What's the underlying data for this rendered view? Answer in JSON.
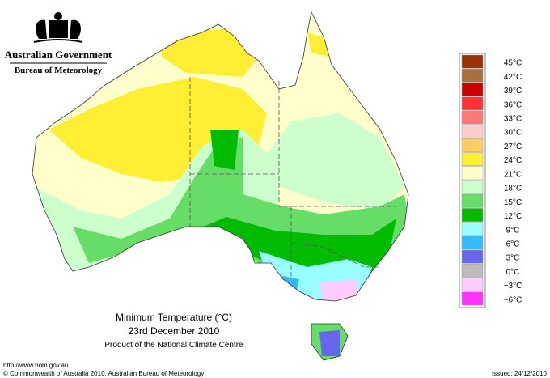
{
  "header": {
    "government": "Australian Government",
    "bureau": "Bureau of Meteorology"
  },
  "legend": [
    {
      "label": "45°C",
      "color": "#993300"
    },
    {
      "label": "42°C",
      "color": "#a8703c"
    },
    {
      "label": "39°C",
      "color": "#cc0000"
    },
    {
      "label": "36°C",
      "color": "#ff3333"
    },
    {
      "label": "33°C",
      "color": "#ff7777"
    },
    {
      "label": "30°C",
      "color": "#ffcccc"
    },
    {
      "label": "27°C",
      "color": "#ffcc66"
    },
    {
      "label": "24°C",
      "color": "#ffee33"
    },
    {
      "label": "21°C",
      "color": "#ffffcc"
    },
    {
      "label": "18°C",
      "color": "#ccffcc"
    },
    {
      "label": "15°C",
      "color": "#66dd66"
    },
    {
      "label": "12°C",
      "color": "#00bb00"
    },
    {
      "label": "9°C",
      "color": "#99ffff"
    },
    {
      "label": "6°C",
      "color": "#33bbff"
    },
    {
      "label": "3°C",
      "color": "#6666ee"
    },
    {
      "label": "0°C",
      "color": "#bbbbbb"
    },
    {
      "label": "−3°C",
      "color": "#ffccff"
    },
    {
      "label": "−6°C",
      "color": "#ff33ff"
    }
  ],
  "title": "Minimum Temperature (°C)",
  "date": "23rd December 2010",
  "product": "Product of the National Climate Centre",
  "footer": {
    "url": "http://www.bom.gov.au",
    "copyright": "© Commonwealth of Australia 2010, Australian Bureau of Meteorology",
    "issued": "Issued: 24/12/2010"
  }
}
